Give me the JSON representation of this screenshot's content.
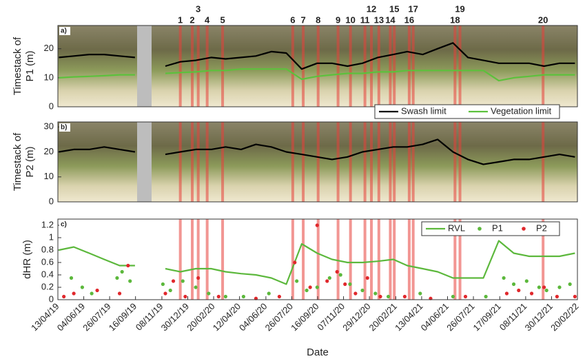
{
  "chart_data": [
    {
      "type": "line",
      "tag": "a)",
      "ylabel": [
        "Timestack of",
        "P1 (m)"
      ],
      "xlim": [
        "13/04/19",
        "20/02/22"
      ],
      "ylim": [
        0,
        28
      ],
      "yticks": [
        0,
        10,
        20
      ],
      "legend": "lower right",
      "event_color": "#e8403a",
      "events": [
        {
          "label": "1",
          "date": "15/12/19"
        },
        {
          "label": "2",
          "date": "08/01/20"
        },
        {
          "label": "3",
          "date": "20/01/20"
        },
        {
          "label": "4",
          "date": "07/02/20"
        },
        {
          "label": "5",
          "date": "09/03/20"
        },
        {
          "label": "6",
          "date": "28/07/20"
        },
        {
          "label": "7",
          "date": "18/08/20"
        },
        {
          "label": "8",
          "date": "17/09/20"
        },
        {
          "label": "9",
          "date": "27/10/20"
        },
        {
          "label": "10",
          "date": "21/11/20"
        },
        {
          "label": "11",
          "date": "20/12/20"
        },
        {
          "label": "12",
          "date": "02/01/21"
        },
        {
          "label": "13",
          "date": "17/01/21"
        },
        {
          "label": "14",
          "date": "09/02/21"
        },
        {
          "label": "15",
          "date": "17/02/21"
        },
        {
          "label": "16",
          "date": "19/03/21"
        },
        {
          "label": "17",
          "date": "27/03/21"
        },
        {
          "label": "18",
          "date": "19/06/21"
        },
        {
          "label": "19",
          "date": "29/06/21"
        },
        {
          "label": "20",
          "date": "13/12/21"
        }
      ],
      "x": [
        "15/04/19",
        "15/05/19",
        "15/06/19",
        "15/07/19",
        "15/08/19",
        "15/09/19",
        "15/10/19",
        "15/11/19",
        "15/12/19",
        "15/01/20",
        "15/02/20",
        "15/03/20",
        "15/04/20",
        "15/05/20",
        "15/06/20",
        "15/07/20",
        "15/08/20",
        "15/09/20",
        "15/10/20",
        "15/11/20",
        "15/12/20",
        "15/01/21",
        "15/02/21",
        "15/03/21",
        "15/04/21",
        "15/05/21",
        "15/06/21",
        "15/07/21",
        "15/08/21",
        "15/09/21",
        "15/10/21",
        "15/11/21",
        "15/12/21",
        "15/01/22",
        "15/02/22"
      ],
      "series": [
        {
          "name": "Swash limit",
          "color": "#000000",
          "values": [
            17,
            17.5,
            18,
            18,
            17.5,
            17,
            null,
            14,
            15.5,
            16,
            17,
            16.5,
            17,
            17.5,
            19,
            18.5,
            13,
            15,
            15,
            14,
            15,
            17,
            18,
            19,
            18,
            20,
            22,
            17,
            16,
            15,
            15,
            15,
            14,
            15,
            15
          ]
        },
        {
          "name": "Vegetation limit",
          "color": "#5cc13c",
          "values": [
            10,
            10.3,
            10.5,
            10.7,
            11,
            11,
            null,
            11.5,
            11.8,
            12,
            12.5,
            12.5,
            13,
            13,
            13,
            13,
            9.5,
            10.5,
            11,
            11.5,
            11.5,
            12,
            12,
            12.5,
            12.5,
            12.5,
            12.5,
            12.5,
            12.5,
            9,
            10,
            10.5,
            11,
            11,
            11
          ]
        }
      ]
    },
    {
      "type": "line",
      "tag": "b)",
      "ylabel": [
        "Timestack of",
        "P2 (m)"
      ],
      "xlim": [
        "13/04/19",
        "20/02/22"
      ],
      "ylim": [
        0,
        32
      ],
      "yticks": [
        0,
        10,
        20,
        30
      ],
      "x": [
        "15/04/19",
        "15/05/19",
        "15/06/19",
        "15/07/19",
        "15/08/19",
        "15/09/19",
        "15/10/19",
        "15/11/19",
        "15/12/19",
        "15/01/20",
        "15/02/20",
        "15/03/20",
        "15/04/20",
        "15/05/20",
        "15/06/20",
        "15/07/20",
        "15/08/20",
        "15/09/20",
        "15/10/20",
        "15/11/20",
        "15/12/20",
        "15/01/21",
        "15/02/21",
        "15/03/21",
        "15/04/21",
        "15/05/21",
        "15/06/21",
        "15/07/21",
        "15/08/21",
        "15/09/21",
        "15/10/21",
        "15/11/21",
        "15/12/21",
        "15/01/22",
        "15/02/22"
      ],
      "series": [
        {
          "color": "#000000",
          "values": [
            20,
            21,
            21,
            22,
            21,
            20,
            null,
            19,
            20,
            21,
            21,
            22,
            21,
            23,
            22,
            20,
            19,
            18,
            17,
            18,
            20,
            21,
            22,
            22,
            23,
            25,
            20,
            17,
            15,
            16,
            17,
            17,
            18,
            19,
            18
          ]
        }
      ]
    },
    {
      "type": "scatter",
      "tag": "c)",
      "ylabel": [
        "dHR (m)"
      ],
      "xlabel": "Date",
      "legend": "upper right",
      "xlim": [
        "13/04/19",
        "20/02/22"
      ],
      "xticks": [
        "13/04/19",
        "04/06/19",
        "26/07/19",
        "16/09/19",
        "08/11/19",
        "30/12/19",
        "20/02/20",
        "12/04/20",
        "04/06/20",
        "26/07/20",
        "16/09/20",
        "07/11/20",
        "29/12/20",
        "20/02/21",
        "13/04/21",
        "04/06/21",
        "26/07/21",
        "17/09/21",
        "08/11/21",
        "30/12/21",
        "20/02/22"
      ],
      "ylim": [
        0,
        1.3
      ],
      "yticks": [
        0,
        0.2,
        0.4,
        0.6,
        0.8,
        1,
        1.2
      ],
      "series": [
        {
          "name": "RVL",
          "type": "line",
          "color": "#5cb83c",
          "x": [
            "15/04/19",
            "15/05/19",
            "15/06/19",
            "15/07/19",
            "15/08/19",
            "15/09/19",
            "15/10/19",
            "15/11/19",
            "15/12/19",
            "15/01/20",
            "15/02/20",
            "15/03/20",
            "15/04/20",
            "15/05/20",
            "15/06/20",
            "15/07/20",
            "15/08/20",
            "15/09/20",
            "15/10/20",
            "15/11/20",
            "15/12/20",
            "15/01/21",
            "15/02/21",
            "15/03/21",
            "15/04/21",
            "15/05/21",
            "15/06/21",
            "15/07/21",
            "15/08/21",
            "15/09/21",
            "15/10/21",
            "15/11/21",
            "15/12/21",
            "15/01/22",
            "15/02/22"
          ],
          "values": [
            0.8,
            0.85,
            0.75,
            0.65,
            0.55,
            0.55,
            null,
            0.5,
            0.45,
            0.5,
            0.5,
            0.45,
            0.42,
            0.4,
            0.35,
            0.25,
            0.9,
            0.75,
            0.65,
            0.6,
            0.6,
            0.62,
            0.65,
            0.55,
            0.5,
            0.45,
            0.35,
            0.35,
            0.35,
            0.95,
            0.75,
            0.7,
            0.7,
            0.7,
            0.75
          ]
        },
        {
          "name": "P1",
          "type": "scatter",
          "color": "#5cb83c",
          "x": [
            "10/05/19",
            "01/06/19",
            "20/06/19",
            "10/08/19",
            "20/08/19",
            "05/09/19",
            "10/11/19",
            "25/11/19",
            "20/12/19",
            "15/01/20",
            "10/02/20",
            "15/03/20",
            "20/04/20",
            "10/06/20",
            "05/08/20",
            "25/08/20",
            "15/09/20",
            "10/10/20",
            "01/11/20",
            "20/11/20",
            "15/12/20",
            "10/01/21",
            "05/02/21",
            "10/04/21",
            "15/06/21",
            "20/08/21",
            "25/09/21",
            "15/10/21",
            "10/11/21",
            "05/12/21",
            "20/12/21",
            "15/01/22",
            "05/02/22"
          ],
          "values": [
            0.35,
            0.2,
            0.1,
            0.35,
            0.45,
            0.3,
            0.25,
            0.15,
            0.3,
            0.2,
            0.1,
            0.05,
            0.05,
            0.1,
            0.3,
            0.15,
            0.2,
            0.35,
            0.4,
            0.25,
            0.15,
            0.1,
            0.05,
            0.1,
            0.05,
            0.05,
            0.35,
            0.25,
            0.3,
            0.2,
            0.15,
            0.2,
            0.25
          ]
        },
        {
          "name": "P2",
          "type": "scatter",
          "color": "#e0282c",
          "x": [
            "25/04/19",
            "15/05/19",
            "01/07/19",
            "15/08/19",
            "01/09/19",
            "15/11/19",
            "01/12/19",
            "25/12/19",
            "20/01/20",
            "01/03/20",
            "15/05/20",
            "01/07/20",
            "01/08/20",
            "01/09/20",
            "15/09/20",
            "05/10/20",
            "25/10/20",
            "10/11/20",
            "01/12/20",
            "25/12/20",
            "20/01/21",
            "10/03/21",
            "01/05/21",
            "10/07/21",
            "01/10/21",
            "25/10/21",
            "20/11/21",
            "15/12/21",
            "10/01/22",
            "15/02/22"
          ],
          "values": [
            0.05,
            0.1,
            0.15,
            0.1,
            0.55,
            0.1,
            0.3,
            0.05,
            0.35,
            0.05,
            0.02,
            0.05,
            0.6,
            0.2,
            1.2,
            0.3,
            0.45,
            0.25,
            0.1,
            0.35,
            0.05,
            0.05,
            0.02,
            0.05,
            0.1,
            0.15,
            0.1,
            0.2,
            0.05,
            0.05
          ]
        }
      ]
    }
  ]
}
